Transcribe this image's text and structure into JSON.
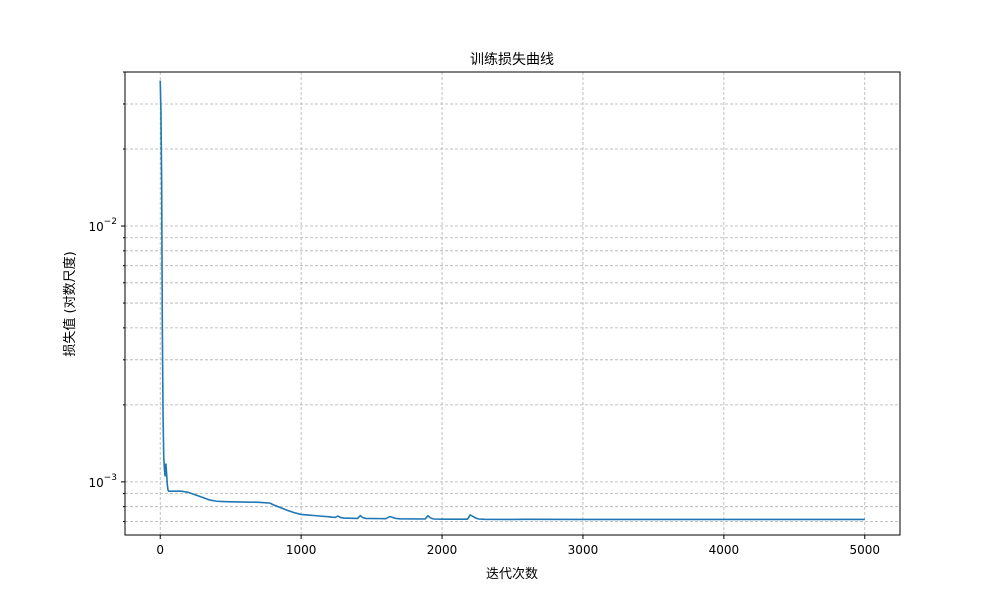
{
  "chart_data": {
    "type": "line",
    "title": "训练损失曲线",
    "xlabel": "迭代次数",
    "ylabel": "损失值 (对数尺度)",
    "xlim": [
      -250,
      5250
    ],
    "ylim": [
      0.00062,
      0.04
    ],
    "yscale": "log",
    "grid": true,
    "x_ticks": [
      0,
      1000,
      2000,
      3000,
      4000,
      5000
    ],
    "x_tick_labels": [
      "0",
      "1000",
      "2000",
      "3000",
      "4000",
      "5000"
    ],
    "y_major_ticks": [
      0.01,
      0.001
    ],
    "y_major_tick_labels": [
      "10",
      "10"
    ],
    "y_major_tick_exponents": [
      "−2",
      "−3"
    ],
    "series": [
      {
        "color": "#1f77b4",
        "x": [
          0,
          5,
          10,
          15,
          20,
          25,
          30,
          35,
          40,
          45,
          50,
          55,
          60,
          80,
          100,
          150,
          200,
          250,
          300,
          350,
          400,
          450,
          500,
          600,
          700,
          780,
          800,
          850,
          900,
          950,
          1000,
          1050,
          1100,
          1150,
          1200,
          1240,
          1260,
          1280,
          1300,
          1400,
          1420,
          1440,
          1460,
          1600,
          1630,
          1650,
          1670,
          1700,
          1880,
          1900,
          1920,
          1940,
          2000,
          2180,
          2200,
          2220,
          2240,
          2260,
          2300,
          2500,
          2600,
          3000,
          3500,
          4000,
          4500,
          5000
        ],
        "y": [
          0.037,
          0.028,
          0.015,
          0.004,
          0.0018,
          0.00125,
          0.00112,
          0.00105,
          0.00118,
          0.00108,
          0.00098,
          0.00093,
          0.00092,
          0.00092,
          0.00092,
          0.00092,
          0.00091,
          0.00089,
          0.00087,
          0.00085,
          0.00084,
          0.000838,
          0.000836,
          0.000834,
          0.000832,
          0.000826,
          0.000815,
          0.000795,
          0.000775,
          0.000758,
          0.000746,
          0.000742,
          0.000738,
          0.000734,
          0.00073,
          0.000726,
          0.000735,
          0.000726,
          0.000722,
          0.00072,
          0.000738,
          0.000724,
          0.00072,
          0.000718,
          0.000732,
          0.000726,
          0.00072,
          0.000717,
          0.000716,
          0.000737,
          0.000722,
          0.000716,
          0.000715,
          0.000715,
          0.000743,
          0.000732,
          0.000722,
          0.000716,
          0.000714,
          0.000713,
          0.000714,
          0.000713,
          0.000713,
          0.000713,
          0.000713,
          0.000713
        ]
      }
    ]
  }
}
